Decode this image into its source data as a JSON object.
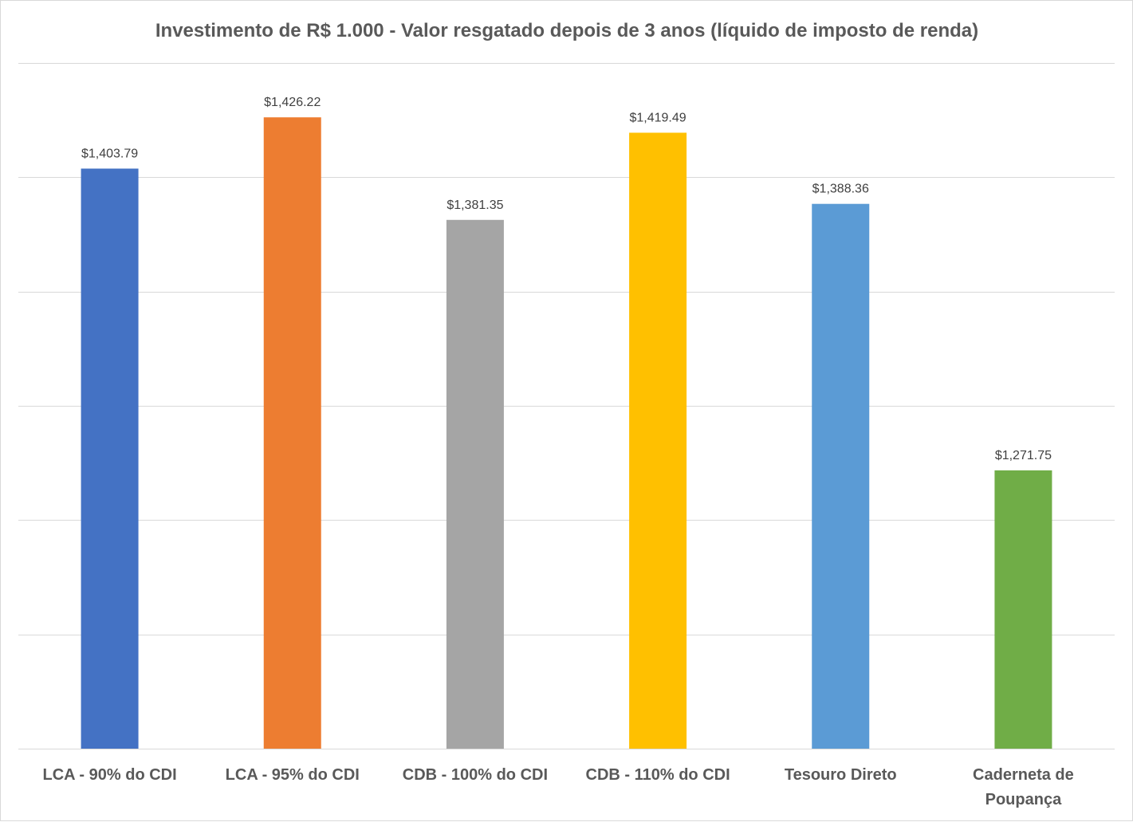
{
  "chart_data": {
    "type": "bar",
    "title": "Investimento de R$ 1.000 - Valor resgatado depois de 3 anos (líquido de imposto de renda)",
    "categories": [
      "LCA - 90% do CDI",
      "LCA - 95% do CDI",
      "CDB - 100% do CDI",
      "CDB - 110% do CDI",
      "Tesouro Direto",
      "Caderneta de Poupança"
    ],
    "values": [
      1403.79,
      1426.22,
      1381.35,
      1419.49,
      1388.36,
      1271.75
    ],
    "data_labels": [
      "$1,403.79",
      "$1,426.22",
      "$1,381.35",
      "$1,419.49",
      "$1,388.36",
      "$1,271.75"
    ],
    "colors": [
      "#4472c4",
      "#ed7d31",
      "#a5a5a5",
      "#ffc000",
      "#5b9bd5",
      "#70ad47"
    ],
    "ylim": [
      1150,
      1450
    ],
    "ytick_step": 50,
    "y_tick_labels_shown": false,
    "grid": true,
    "legend": "none",
    "xlabel": "",
    "ylabel": ""
  }
}
